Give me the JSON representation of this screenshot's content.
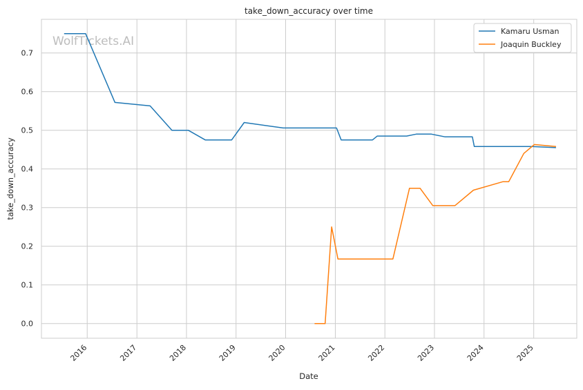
{
  "chart_data": {
    "type": "line",
    "title": "take_down_accuracy over time",
    "xlabel": "Date",
    "ylabel": "take_down_accuracy",
    "watermark": "WolfTickets.AI",
    "xlim": [
      "2015-01-29",
      "2025-11-14"
    ],
    "ylim": [
      -0.038,
      0.787
    ],
    "x_ticks": [
      "2016",
      "2017",
      "2018",
      "2019",
      "2020",
      "2021",
      "2022",
      "2023",
      "2024",
      "2025"
    ],
    "y_ticks": [
      "0.0",
      "0.1",
      "0.2",
      "0.3",
      "0.4",
      "0.5",
      "0.6",
      "0.7"
    ],
    "grid": true,
    "legend_position": "top-right",
    "series": [
      {
        "name": "Kamaru Usman",
        "color": "#1f77b4",
        "points": [
          [
            "2015-07-15",
            0.75
          ],
          [
            "2015-12-20",
            0.75
          ],
          [
            "2016-07-23",
            0.572
          ],
          [
            "2017-04-08",
            0.563
          ],
          [
            "2017-09-16",
            0.5
          ],
          [
            "2018-01-14",
            0.5
          ],
          [
            "2018-05-19",
            0.475
          ],
          [
            "2018-11-30",
            0.475
          ],
          [
            "2019-03-02",
            0.52
          ],
          [
            "2019-12-14",
            0.506
          ],
          [
            "2021-01-10",
            0.506
          ],
          [
            "2021-02-13",
            0.475
          ],
          [
            "2021-10-02",
            0.475
          ],
          [
            "2021-11-06",
            0.485
          ],
          [
            "2022-06-10",
            0.485
          ],
          [
            "2022-08-20",
            0.49
          ],
          [
            "2022-12-10",
            0.49
          ],
          [
            "2023-03-18",
            0.483
          ],
          [
            "2023-10-07",
            0.483
          ],
          [
            "2023-10-21",
            0.458
          ],
          [
            "2024-12-15",
            0.458
          ],
          [
            "2025-06-14",
            0.455
          ]
        ]
      },
      {
        "name": "Joaquin Buckley",
        "color": "#ff7f0e",
        "points": [
          [
            "2020-08-01",
            0.0
          ],
          [
            "2020-10-18",
            0.0
          ],
          [
            "2020-12-05",
            0.25
          ],
          [
            "2021-01-20",
            0.167
          ],
          [
            "2022-03-01",
            0.167
          ],
          [
            "2022-07-01",
            0.35
          ],
          [
            "2022-09-17",
            0.35
          ],
          [
            "2022-12-20",
            0.305
          ],
          [
            "2023-06-01",
            0.305
          ],
          [
            "2023-10-15",
            0.345
          ],
          [
            "2024-05-20",
            0.367
          ],
          [
            "2024-07-01",
            0.367
          ],
          [
            "2024-10-20",
            0.44
          ],
          [
            "2025-01-05",
            0.463
          ],
          [
            "2025-06-14",
            0.458
          ]
        ]
      }
    ]
  }
}
